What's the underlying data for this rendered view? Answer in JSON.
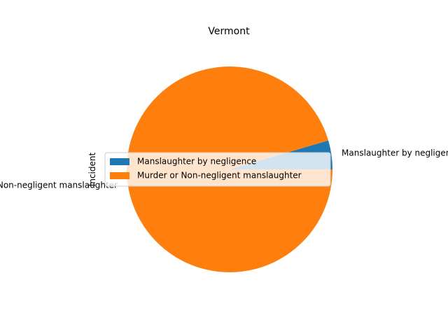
{
  "chart_data": {
    "type": "pie",
    "title": "Vermont",
    "ylabel": "Incident",
    "categories": [
      "Manslaughter by negligence",
      "Murder or Non-negligent manslaughter"
    ],
    "values": [
      1,
      21
    ],
    "colors": [
      "#1f77b4",
      "#ff7f0e"
    ],
    "legend": {
      "placement": "center-left",
      "entries": [
        "Manslaughter by negligence",
        "Murder or Non-negligent manslaughter"
      ]
    }
  }
}
